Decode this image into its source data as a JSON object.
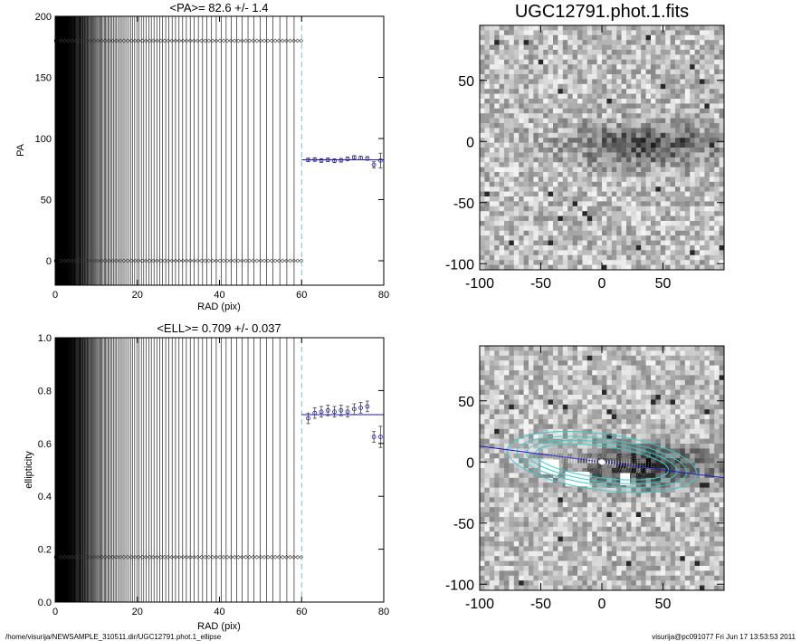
{
  "chart_data": [
    {
      "type": "scatter",
      "id": "pa",
      "title": "<PA>=  82.6 +/-   1.4",
      "xlabel": "RAD (pix)",
      "ylabel": "PA",
      "xlim": [
        0,
        80
      ],
      "ylim": [
        -20,
        200
      ],
      "xticks": [
        0,
        20,
        40,
        60,
        80
      ],
      "yticks": [
        0,
        50,
        100,
        150,
        200
      ],
      "mean": 82.6,
      "cutoff": 60,
      "points": [
        {
          "x": 61.6,
          "y": 82.5,
          "err": 1.5
        },
        {
          "x": 63.2,
          "y": 82.8,
          "err": 1.5
        },
        {
          "x": 64.8,
          "y": 82.0,
          "err": 1.5
        },
        {
          "x": 66.4,
          "y": 82.6,
          "err": 1.5
        },
        {
          "x": 68.0,
          "y": 81.8,
          "err": 1.5
        },
        {
          "x": 69.6,
          "y": 82.2,
          "err": 1.5
        },
        {
          "x": 71.2,
          "y": 83.4,
          "err": 1.5
        },
        {
          "x": 72.8,
          "y": 84.5,
          "err": 1.5
        },
        {
          "x": 74.4,
          "y": 84.0,
          "err": 1.5
        },
        {
          "x": 76.0,
          "y": 83.7,
          "err": 1.5
        },
        {
          "x": 77.6,
          "y": 78.5,
          "err": 2.5
        },
        {
          "x": 79.2,
          "y": 82.0,
          "err": 6.0
        }
      ],
      "rows_y": [
        180,
        0
      ]
    },
    {
      "type": "scatter",
      "id": "ell",
      "title": "<ELL>= 0.709 +/-  0.037",
      "xlabel": "RAD (pix)",
      "ylabel": "ellipticity",
      "xlim": [
        0,
        80
      ],
      "ylim": [
        0,
        1
      ],
      "xticks": [
        0,
        20,
        40,
        60,
        80
      ],
      "yticks": [
        0.0,
        0.2,
        0.4,
        0.6,
        0.8,
        1.0
      ],
      "mean": 0.709,
      "cutoff": 60,
      "points": [
        {
          "x": 61.6,
          "y": 0.695,
          "err": 0.02
        },
        {
          "x": 63.2,
          "y": 0.715,
          "err": 0.02
        },
        {
          "x": 64.8,
          "y": 0.72,
          "err": 0.02
        },
        {
          "x": 66.4,
          "y": 0.725,
          "err": 0.02
        },
        {
          "x": 68.0,
          "y": 0.72,
          "err": 0.02
        },
        {
          "x": 69.6,
          "y": 0.725,
          "err": 0.02
        },
        {
          "x": 71.2,
          "y": 0.72,
          "err": 0.02
        },
        {
          "x": 72.8,
          "y": 0.73,
          "err": 0.02
        },
        {
          "x": 74.4,
          "y": 0.735,
          "err": 0.02
        },
        {
          "x": 76.0,
          "y": 0.74,
          "err": 0.02
        },
        {
          "x": 77.6,
          "y": 0.625,
          "err": 0.02
        },
        {
          "x": 79.2,
          "y": 0.625,
          "err": 0.04
        }
      ],
      "rows_y": [
        0.17
      ]
    },
    {
      "type": "heatmap",
      "id": "img",
      "title": "UGC12791.phot.1.fits",
      "xlim": [
        -100,
        100
      ],
      "ylim": [
        -105,
        95
      ],
      "xticks": [
        -100,
        -50,
        0,
        50
      ],
      "yticks": [
        -100,
        -50,
        0,
        50
      ]
    },
    {
      "type": "heatmap",
      "id": "fit",
      "title": "",
      "xlim": [
        -100,
        100
      ],
      "ylim": [
        -105,
        95
      ],
      "xticks": [
        -100,
        -50,
        0,
        50
      ],
      "yticks": [
        -100,
        -50,
        0,
        50
      ]
    }
  ],
  "footer": {
    "path": "/home/visurija/NEWSAMPLE_310511.dir/UGC12791.phot.1_ellipse",
    "stamp": "visurija@pc091077  Fri Jun 17 13:53:53 2011"
  },
  "colors": {
    "fit_line": "#1a1acc",
    "cutoff_line": "#66cccc",
    "contour": "#33cccc",
    "points": "#1a1acc"
  }
}
